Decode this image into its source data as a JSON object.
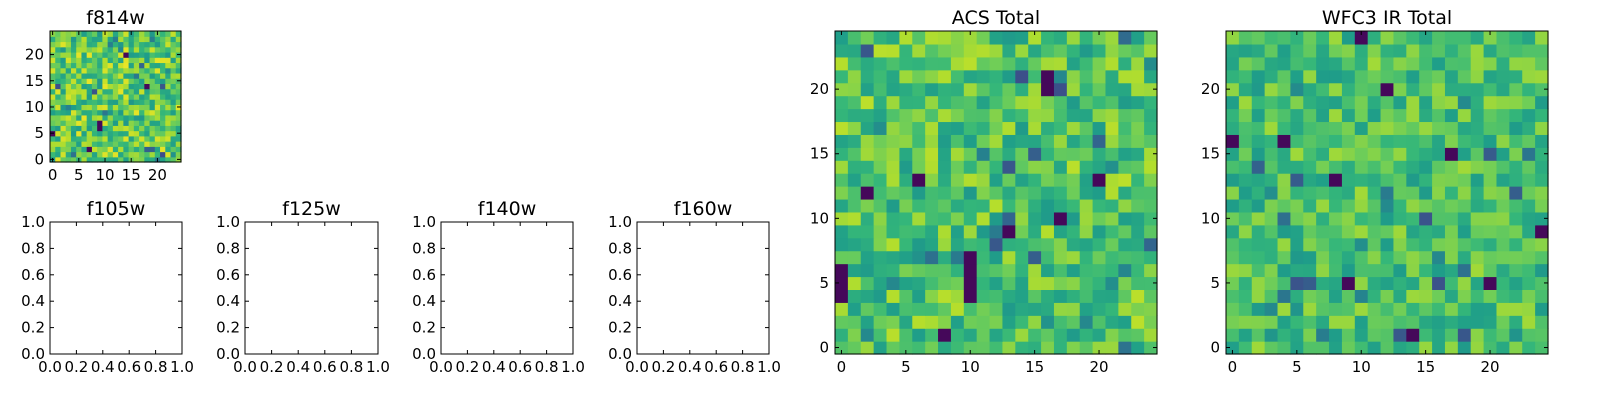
{
  "chart_data": [
    {
      "type": "heatmap",
      "title": "f814w",
      "grid_size": 25,
      "xticks": [
        "0",
        "5",
        "10",
        "15",
        "20"
      ],
      "yticks": [
        "0",
        "5",
        "10",
        "15",
        "20"
      ],
      "colormap": "viridis",
      "seed": 7,
      "bg_level": 0.75,
      "noise": 0.22,
      "dark_pixels": [
        [
          9,
          6
        ],
        [
          9,
          7
        ],
        [
          18,
          14
        ],
        [
          0,
          5
        ],
        [
          7,
          2
        ],
        [
          14,
          20
        ]
      ]
    },
    {
      "type": "heatmap",
      "title": "ACS Total",
      "grid_size": 25,
      "xticks": [
        "0",
        "5",
        "10",
        "15",
        "20"
      ],
      "yticks": [
        "0",
        "5",
        "10",
        "15",
        "20"
      ],
      "colormap": "viridis",
      "seed": 11,
      "bg_level": 0.72,
      "noise": 0.18,
      "dark_pixels": [
        [
          10,
          4
        ],
        [
          10,
          5
        ],
        [
          10,
          6
        ],
        [
          10,
          7
        ],
        [
          0,
          4
        ],
        [
          0,
          5
        ],
        [
          0,
          6
        ],
        [
          17,
          10
        ],
        [
          16,
          20
        ],
        [
          16,
          21
        ],
        [
          2,
          12
        ],
        [
          6,
          13
        ],
        [
          13,
          9
        ],
        [
          8,
          1
        ],
        [
          20,
          13
        ]
      ]
    },
    {
      "type": "heatmap",
      "title": "WFC3 IR Total",
      "grid_size": 25,
      "xticks": [
        "0",
        "5",
        "10",
        "15",
        "20"
      ],
      "yticks": [
        "0",
        "5",
        "10",
        "15",
        "20"
      ],
      "colormap": "viridis",
      "seed": 19,
      "bg_level": 0.7,
      "noise": 0.16,
      "dark_pixels": [
        [
          10,
          24
        ],
        [
          0,
          16
        ],
        [
          4,
          16
        ],
        [
          17,
          15
        ],
        [
          8,
          13
        ],
        [
          12,
          20
        ],
        [
          9,
          5
        ],
        [
          20,
          5
        ],
        [
          14,
          1
        ],
        [
          24,
          9
        ]
      ]
    },
    {
      "type": "scatter",
      "title": "f105w",
      "xlim": [
        0.0,
        1.0
      ],
      "ylim": [
        0.0,
        1.0
      ],
      "xticks": [
        "0.0",
        "0.2",
        "0.4",
        "0.6",
        "0.8",
        "1.0"
      ],
      "yticks": [
        "0.0",
        "0.2",
        "0.4",
        "0.6",
        "0.8",
        "1.0"
      ],
      "series": []
    },
    {
      "type": "scatter",
      "title": "f125w",
      "xlim": [
        0.0,
        1.0
      ],
      "ylim": [
        0.0,
        1.0
      ],
      "xticks": [
        "0.0",
        "0.2",
        "0.4",
        "0.6",
        "0.8",
        "1.0"
      ],
      "yticks": [
        "0.0",
        "0.2",
        "0.4",
        "0.6",
        "0.8",
        "1.0"
      ],
      "series": []
    },
    {
      "type": "scatter",
      "title": "f140w",
      "xlim": [
        0.0,
        1.0
      ],
      "ylim": [
        0.0,
        1.0
      ],
      "xticks": [
        "0.0",
        "0.2",
        "0.4",
        "0.6",
        "0.8",
        "1.0"
      ],
      "yticks": [
        "0.0",
        "0.2",
        "0.4",
        "0.6",
        "0.8",
        "1.0"
      ],
      "series": []
    },
    {
      "type": "scatter",
      "title": "f160w",
      "xlim": [
        0.0,
        1.0
      ],
      "ylim": [
        0.0,
        1.0
      ],
      "xticks": [
        "0.0",
        "0.2",
        "0.4",
        "0.6",
        "0.8",
        "1.0"
      ],
      "yticks": [
        "0.0",
        "0.2",
        "0.4",
        "0.6",
        "0.8",
        "1.0"
      ],
      "series": []
    }
  ]
}
